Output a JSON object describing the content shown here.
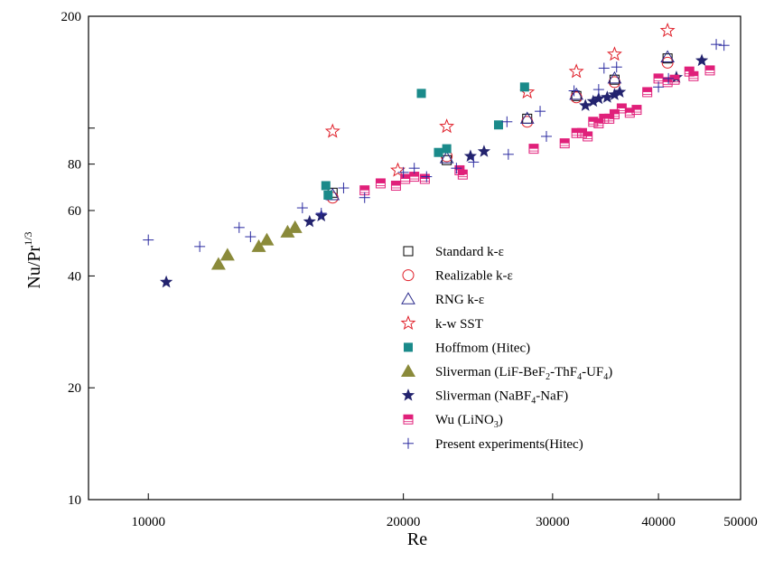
{
  "chart_data": {
    "type": "scatter",
    "xlabel": "Re",
    "ylabel": "Nu/Pr",
    "ylabel_sup": "1/3",
    "xscale": "log",
    "yscale": "log",
    "xlim": [
      8500,
      50000
    ],
    "ylim": [
      10,
      200
    ],
    "grid": false,
    "legend_position": "center-right",
    "x_ticks": [
      {
        "value": 10000,
        "label": "10000"
      },
      {
        "value": 20000,
        "label": "20000"
      },
      {
        "value": 30000,
        "label": "30000"
      },
      {
        "value": 40000,
        "label": "40000"
      },
      {
        "value": 50000,
        "label": "50000"
      }
    ],
    "y_ticks": [
      {
        "value": 10,
        "label": "10"
      },
      {
        "value": 20,
        "label": "20"
      },
      {
        "value": 40,
        "label": "40"
      },
      {
        "value": 60,
        "label": "60"
      },
      {
        "value": 80,
        "label": "80"
      },
      {
        "value": 100,
        "label": ""
      },
      {
        "value": 200,
        "label": "200"
      }
    ],
    "series": [
      {
        "name": "Standard k-ε",
        "name_parts": [
          [
            "Standard k-ε",
            ""
          ]
        ],
        "marker": "square-open",
        "color": "#000000",
        "points": [
          [
            16500,
            67
          ],
          [
            22500,
            82
          ],
          [
            28000,
            106
          ],
          [
            32000,
            122
          ],
          [
            35500,
            135
          ],
          [
            41000,
            154
          ]
        ]
      },
      {
        "name": "Realizable k-ε",
        "name_parts": [
          [
            "Realizable k-ε",
            ""
          ]
        ],
        "marker": "circle-open",
        "color": "#e0202a",
        "points": [
          [
            16500,
            65
          ],
          [
            22500,
            84
          ],
          [
            28000,
            104
          ],
          [
            32000,
            121
          ],
          [
            35500,
            133
          ],
          [
            41000,
            150
          ]
        ]
      },
      {
        "name": "RNG k-ε",
        "name_parts": [
          [
            "RNG k-ε",
            ""
          ]
        ],
        "marker": "triangle-open",
        "color": "#2a2a8c",
        "points": [
          [
            16500,
            66
          ],
          [
            22500,
            83
          ],
          [
            28000,
            106
          ],
          [
            32000,
            123
          ],
          [
            35500,
            136
          ],
          [
            41000,
            155
          ]
        ]
      },
      {
        "name": "k-w SST",
        "name_parts": [
          [
            "k-w SST",
            ""
          ]
        ],
        "marker": "star-open",
        "color": "#e0202a",
        "points": [
          [
            16500,
            98
          ],
          [
            19700,
            77
          ],
          [
            22500,
            101
          ],
          [
            28000,
            125
          ],
          [
            32000,
            142
          ],
          [
            35500,
            158
          ],
          [
            41000,
            183
          ]
        ]
      },
      {
        "name": "Hoffmom (Hitec)",
        "name_parts": [
          [
            "Hoffmom (Hitec)",
            ""
          ]
        ],
        "marker": "square-filled",
        "color": "#1a8a8a",
        "points": [
          [
            16200,
            70
          ],
          [
            16300,
            66
          ],
          [
            21000,
            124
          ],
          [
            22000,
            86
          ],
          [
            22500,
            88
          ],
          [
            25900,
            102
          ],
          [
            27800,
            129
          ]
        ]
      },
      {
        "name": "Sliverman (LiF-BeF2-ThF4-UF4)",
        "name_parts": [
          [
            "Sliverman (LiF-BeF",
            ""
          ],
          [
            "2",
            "sub"
          ],
          [
            "-ThF",
            ""
          ],
          [
            "4",
            "sub"
          ],
          [
            "-UF",
            ""
          ],
          [
            "4",
            "sub"
          ],
          [
            ")",
            ""
          ]
        ],
        "marker": "triangle-filled",
        "color": "#8a8a3a",
        "points": [
          [
            12100,
            43
          ],
          [
            12400,
            45.5
          ],
          [
            13500,
            48
          ],
          [
            13800,
            50
          ],
          [
            14600,
            52.5
          ],
          [
            14900,
            54
          ]
        ]
      },
      {
        "name": "Sliverman (NaBF4-NaF)",
        "name_parts": [
          [
            "Sliverman (NaBF",
            ""
          ],
          [
            "4",
            "sub"
          ],
          [
            "-NaF)",
            ""
          ]
        ],
        "marker": "star-filled",
        "color": "#23236e",
        "points": [
          [
            10500,
            38.5
          ],
          [
            15500,
            56
          ],
          [
            16000,
            58
          ],
          [
            24000,
            84
          ],
          [
            24900,
            86.5
          ],
          [
            32800,
            115
          ],
          [
            33500,
            118
          ],
          [
            34000,
            120
          ],
          [
            34800,
            121
          ],
          [
            35500,
            123
          ],
          [
            36000,
            125
          ],
          [
            42000,
            137
          ],
          [
            45000,
            152
          ]
        ]
      },
      {
        "name": "Wu (LiNO3)",
        "name_parts": [
          [
            "Wu (LiNO",
            ""
          ],
          [
            "3",
            "sub"
          ],
          [
            ")",
            ""
          ]
        ],
        "marker": "square-half",
        "color": "#e0207a",
        "points": [
          [
            18000,
            68
          ],
          [
            18800,
            71
          ],
          [
            19600,
            70
          ],
          [
            20100,
            73
          ],
          [
            20600,
            74
          ],
          [
            21200,
            73
          ],
          [
            23300,
            77
          ],
          [
            23500,
            75
          ],
          [
            28500,
            88
          ],
          [
            31000,
            91
          ],
          [
            32000,
            97
          ],
          [
            32500,
            97
          ],
          [
            33000,
            95
          ],
          [
            33500,
            104
          ],
          [
            34000,
            103
          ],
          [
            34500,
            106
          ],
          [
            35000,
            106
          ],
          [
            35500,
            109
          ],
          [
            36200,
            113
          ],
          [
            37000,
            110
          ],
          [
            37700,
            112
          ],
          [
            38800,
            125
          ],
          [
            40000,
            136
          ],
          [
            41000,
            133
          ],
          [
            41800,
            135
          ],
          [
            43500,
            142
          ],
          [
            44000,
            138
          ],
          [
            46000,
            143
          ]
        ]
      },
      {
        "name": "Present experiments(Hitec)",
        "name_parts": [
          [
            "Present experiments(Hitec)",
            ""
          ]
        ],
        "marker": "plus",
        "color": "#2a2aa0",
        "points": [
          [
            10000,
            50
          ],
          [
            11500,
            48
          ],
          [
            12800,
            54
          ],
          [
            13200,
            51
          ],
          [
            15200,
            61
          ],
          [
            16000,
            59
          ],
          [
            17000,
            69
          ],
          [
            18000,
            65
          ],
          [
            20000,
            76
          ],
          [
            20600,
            78
          ],
          [
            21300,
            74
          ],
          [
            23100,
            78
          ],
          [
            24200,
            81
          ],
          [
            26500,
            104
          ],
          [
            26600,
            85
          ],
          [
            29000,
            111
          ],
          [
            29500,
            95
          ],
          [
            31800,
            126
          ],
          [
            34000,
            127
          ],
          [
            34500,
            145
          ],
          [
            35700,
            146
          ],
          [
            40000,
            129
          ],
          [
            41100,
            136
          ],
          [
            46800,
            168
          ],
          [
            47800,
            167
          ]
        ]
      }
    ]
  }
}
